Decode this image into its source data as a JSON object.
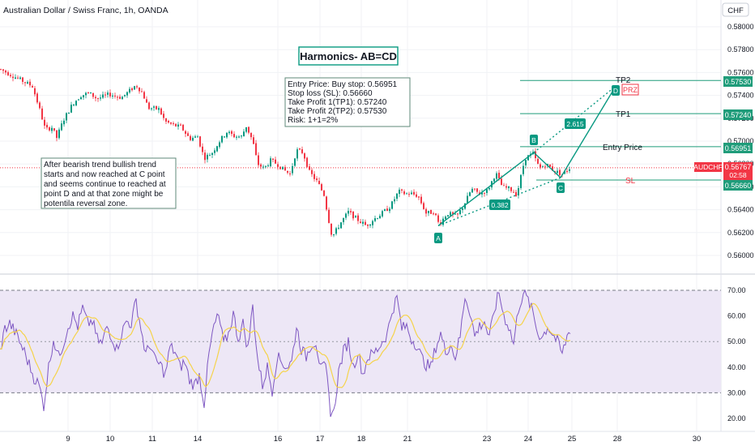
{
  "header": {
    "symbol_title": "Australian Dollar / Swiss Franc, 1h, OANDA",
    "currency_label": "CHF"
  },
  "title_box": {
    "text": "Harmonics- AB=CD"
  },
  "trade_box": {
    "lines": [
      "Entry Price: Buy stop: 0.56951",
      "Stop loss (SL): 0.56660",
      "Take Profit 1(TP1): 0.57240",
      "Take Profit 2(TP2): 0.57530",
      "Risk: 1+1=2%"
    ]
  },
  "note_box": {
    "lines": [
      "After bearish trend bullish trend",
      "starts and now reached at C point",
      "and seems continue to reached at",
      "point D and at that zone might be",
      "potentila reversal zone."
    ]
  },
  "levels": {
    "tp2": {
      "label": "TP2",
      "value": "0.57530",
      "color": "#1f9c7a"
    },
    "tp1": {
      "label": "TP1",
      "value": "0.57240",
      "color": "#1f9c7a"
    },
    "entry": {
      "label": "Entry Price",
      "value": "0.56951",
      "color": "#1f9c7a"
    },
    "sl": {
      "label": "SL",
      "value": "0.56660",
      "color": "#f23645"
    }
  },
  "current_price": {
    "symbol": "AUDCHF",
    "value": "0.56767",
    "countdown": "02:58",
    "color": "#f23645"
  },
  "pattern": {
    "points": [
      "A",
      "B",
      "C",
      "D"
    ],
    "ratio_ab": "0.382",
    "ratio_cd": "2.615",
    "prz_label": "PRZ",
    "color": "#089981"
  },
  "price_axis": {
    "ticks": [
      "0.58000",
      "0.57800",
      "0.57600",
      "0.57400",
      "0.57200",
      "0.57000",
      "0.56800",
      "0.56600",
      "0.56400",
      "0.56200",
      "0.56000"
    ]
  },
  "rsi_axis": {
    "ticks": [
      "70.00",
      "60.00",
      "50.00",
      "40.00",
      "30.00",
      "20.00"
    ]
  },
  "time_axis": {
    "ticks": [
      "9",
      "10",
      "11",
      "14",
      "16",
      "17",
      "18",
      "21",
      "23",
      "24",
      "25",
      "28",
      "30"
    ]
  },
  "colors": {
    "up": "#089981",
    "down": "#f23645",
    "rsi_line": "#7e57c2",
    "rsi_ma": "#f5d34a",
    "rsi_band": "#ede7f6"
  },
  "chart_data": {
    "type": "candlestick",
    "title": "Australian Dollar / Swiss Franc, 1h, OANDA",
    "price_range": [
      0.5595,
      0.581
    ],
    "rsi_range": [
      18,
      72
    ],
    "close_path": [
      [
        0,
        0.5763
      ],
      [
        40,
        0.5748
      ],
      [
        48,
        0.573
      ],
      [
        56,
        0.571
      ],
      [
        64,
        0.5712
      ],
      [
        70,
        0.5703
      ],
      [
        78,
        0.5718
      ],
      [
        90,
        0.5733
      ],
      [
        100,
        0.574
      ],
      [
        110,
        0.5742
      ],
      [
        120,
        0.5737
      ],
      [
        135,
        0.5741
      ],
      [
        150,
        0.5738
      ],
      [
        160,
        0.5744
      ],
      [
        168,
        0.5749
      ],
      [
        176,
        0.5742
      ],
      [
        183,
        0.5729
      ],
      [
        196,
        0.5728
      ],
      [
        204,
        0.5717
      ],
      [
        214,
        0.5714
      ],
      [
        224,
        0.5712
      ],
      [
        234,
        0.5702
      ],
      [
        244,
        0.5704
      ],
      [
        252,
        0.5685
      ],
      [
        262,
        0.569
      ],
      [
        272,
        0.5701
      ],
      [
        280,
        0.5708
      ],
      [
        290,
        0.5704
      ],
      [
        298,
        0.5704
      ],
      [
        304,
        0.5713
      ],
      [
        312,
        0.57
      ],
      [
        318,
        0.568
      ],
      [
        326,
        0.5676
      ],
      [
        334,
        0.5683
      ],
      [
        342,
        0.568
      ],
      [
        350,
        0.5675
      ],
      [
        358,
        0.5671
      ],
      [
        366,
        0.5692
      ],
      [
        374,
        0.569
      ],
      [
        382,
        0.5673
      ],
      [
        392,
        0.5664
      ],
      [
        400,
        0.5653
      ],
      [
        406,
        0.563
      ],
      [
        410,
        0.5616
      ],
      [
        420,
        0.5628
      ],
      [
        430,
        0.5638
      ],
      [
        440,
        0.5632
      ],
      [
        452,
        0.5626
      ],
      [
        462,
        0.5632
      ],
      [
        472,
        0.5637
      ],
      [
        482,
        0.5643
      ],
      [
        492,
        0.5656
      ],
      [
        500,
        0.5654
      ],
      [
        508,
        0.5654
      ],
      [
        516,
        0.5652
      ],
      [
        526,
        0.5637
      ],
      [
        536,
        0.5638
      ],
      [
        542,
        0.5627
      ],
      [
        552,
        0.5637
      ],
      [
        564,
        0.5634
      ],
      [
        574,
        0.5646
      ],
      [
        582,
        0.5658
      ],
      [
        592,
        0.5654
      ],
      [
        602,
        0.5657
      ],
      [
        612,
        0.5672
      ],
      [
        620,
        0.566
      ],
      [
        630,
        0.5658
      ],
      [
        638,
        0.5653
      ],
      [
        648,
        0.5685
      ],
      [
        658,
        0.5689
      ],
      [
        666,
        0.5676
      ],
      [
        674,
        0.568
      ],
      [
        684,
        0.5674
      ],
      [
        694,
        0.5671
      ],
      [
        704,
        0.5677
      ]
    ],
    "rsi_path": [
      [
        0,
        46
      ],
      [
        6,
        55
      ],
      [
        12,
        57
      ],
      [
        18,
        54
      ],
      [
        24,
        50
      ],
      [
        30,
        46
      ],
      [
        36,
        41
      ],
      [
        42,
        36
      ],
      [
        48,
        33
      ],
      [
        54,
        25
      ],
      [
        60,
        40
      ],
      [
        66,
        51
      ],
      [
        72,
        44
      ],
      [
        78,
        49
      ],
      [
        84,
        56
      ],
      [
        90,
        60
      ],
      [
        96,
        56
      ],
      [
        102,
        63
      ],
      [
        108,
        57
      ],
      [
        114,
        58
      ],
      [
        120,
        51
      ],
      [
        126,
        49
      ],
      [
        132,
        56
      ],
      [
        138,
        52
      ],
      [
        144,
        47
      ],
      [
        150,
        53
      ],
      [
        156,
        58
      ],
      [
        162,
        57
      ],
      [
        168,
        66
      ],
      [
        174,
        55
      ],
      [
        180,
        45
      ],
      [
        186,
        49
      ],
      [
        192,
        42
      ],
      [
        198,
        41
      ],
      [
        204,
        37
      ],
      [
        210,
        48
      ],
      [
        216,
        46
      ],
      [
        222,
        40
      ],
      [
        228,
        42
      ],
      [
        234,
        35
      ],
      [
        240,
        33
      ],
      [
        246,
        37
      ],
      [
        252,
        26
      ],
      [
        258,
        45
      ],
      [
        264,
        56
      ],
      [
        270,
        60
      ],
      [
        276,
        49
      ],
      [
        282,
        53
      ],
      [
        288,
        61
      ],
      [
        294,
        51
      ],
      [
        300,
        57
      ],
      [
        306,
        47
      ],
      [
        312,
        64
      ],
      [
        318,
        43
      ],
      [
        324,
        33
      ],
      [
        330,
        40
      ],
      [
        336,
        31
      ],
      [
        342,
        44
      ],
      [
        348,
        42
      ],
      [
        354,
        40
      ],
      [
        360,
        42
      ],
      [
        366,
        56
      ],
      [
        372,
        47
      ],
      [
        378,
        44
      ],
      [
        384,
        49
      ],
      [
        390,
        50
      ],
      [
        396,
        39
      ],
      [
        402,
        40
      ],
      [
        408,
        23
      ],
      [
        412,
        22
      ],
      [
        418,
        38
      ],
      [
        424,
        46
      ],
      [
        430,
        50
      ],
      [
        436,
        40
      ],
      [
        442,
        46
      ],
      [
        448,
        37
      ],
      [
        454,
        44
      ],
      [
        460,
        45
      ],
      [
        466,
        47
      ],
      [
        472,
        50
      ],
      [
        478,
        53
      ],
      [
        484,
        62
      ],
      [
        490,
        67
      ],
      [
        496,
        55
      ],
      [
        502,
        56
      ],
      [
        508,
        51
      ],
      [
        514,
        49
      ],
      [
        520,
        44
      ],
      [
        526,
        41
      ],
      [
        532,
        40
      ],
      [
        538,
        48
      ],
      [
        544,
        53
      ],
      [
        550,
        46
      ],
      [
        556,
        49
      ],
      [
        562,
        44
      ],
      [
        568,
        52
      ],
      [
        574,
        68
      ],
      [
        580,
        62
      ],
      [
        586,
        52
      ],
      [
        592,
        56
      ],
      [
        598,
        58
      ],
      [
        604,
        51
      ],
      [
        610,
        62
      ],
      [
        616,
        69
      ],
      [
        622,
        60
      ],
      [
        628,
        56
      ],
      [
        634,
        49
      ],
      [
        640,
        63
      ],
      [
        646,
        69
      ],
      [
        652,
        66
      ],
      [
        658,
        61
      ],
      [
        664,
        53
      ],
      [
        670,
        52
      ],
      [
        676,
        56
      ],
      [
        682,
        53
      ],
      [
        688,
        50
      ],
      [
        694,
        45
      ],
      [
        700,
        52
      ],
      [
        704,
        55
      ]
    ],
    "levels": {
      "tp2": 0.5753,
      "tp1": 0.5724,
      "entry": 0.56951,
      "sl": 0.5666,
      "current": 0.56767
    },
    "pattern_points": {
      "A": {
        "x": 541,
        "price": 0.5626
      },
      "B": {
        "x": 659,
        "price": 0.569
      },
      "C": {
        "x": 692,
        "price": 0.5668
      },
      "D": {
        "x": 760,
        "price": 0.5748
      }
    }
  }
}
